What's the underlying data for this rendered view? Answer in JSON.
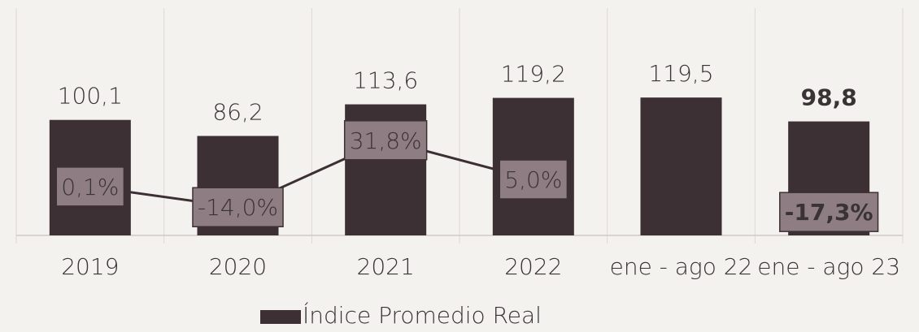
{
  "chart_data": {
    "type": "bar",
    "categories": [
      "2019",
      "2020",
      "2021",
      "2022",
      "ene - ago 22",
      "ene - ago 23"
    ],
    "series": [
      {
        "name": "Índice Promedio Real",
        "color": "#3d3034",
        "values": [
          100.1,
          86.2,
          113.6,
          119.2,
          119.5,
          98.8
        ],
        "value_labels": [
          "100,1",
          "86,2",
          "113,6",
          "119,2",
          "119,5",
          "98,8"
        ]
      },
      {
        "type": "line",
        "axis": "y2",
        "color": "#3d3034",
        "values": [
          0.1,
          -14.0,
          31.8,
          5.0,
          null,
          -17.3
        ],
        "value_labels": [
          "0,1%",
          "-14,0%",
          "31,8%",
          "5,0%",
          null,
          "-17,3%"
        ]
      }
    ],
    "ylim": [
      0,
      197
    ],
    "y2lim": [
      -33.3,
      122.2
    ],
    "bold_last": true,
    "legend": "bottom"
  }
}
